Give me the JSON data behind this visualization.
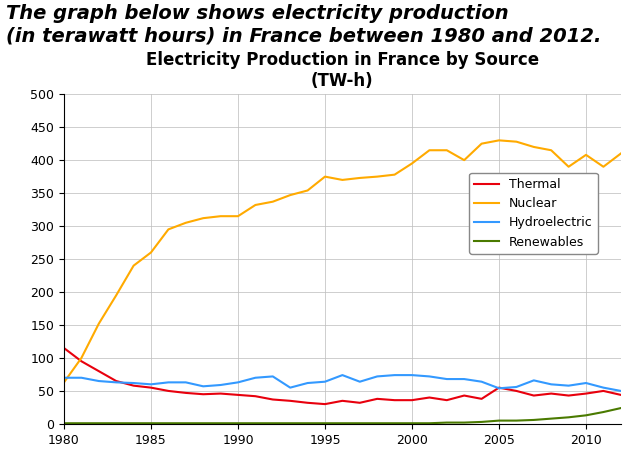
{
  "title_line1": "Electricity Production in France by Source",
  "title_line2": "(TW-h)",
  "header_text": "The graph below shows electricity production\n(in terawatt hours) in France between 1980 and 2012.",
  "years": [
    1980,
    1981,
    1982,
    1983,
    1984,
    1985,
    1986,
    1987,
    1988,
    1989,
    1990,
    1991,
    1992,
    1993,
    1994,
    1995,
    1996,
    1997,
    1998,
    1999,
    2000,
    2001,
    2002,
    2003,
    2004,
    2005,
    2006,
    2007,
    2008,
    2009,
    2010,
    2011,
    2012
  ],
  "thermal": [
    115,
    95,
    80,
    65,
    58,
    55,
    50,
    47,
    45,
    46,
    44,
    42,
    37,
    35,
    32,
    30,
    35,
    32,
    38,
    36,
    36,
    40,
    36,
    43,
    38,
    55,
    50,
    43,
    46,
    43,
    46,
    50,
    44
  ],
  "nuclear": [
    63,
    100,
    152,
    195,
    240,
    260,
    295,
    305,
    312,
    315,
    315,
    332,
    337,
    347,
    354,
    375,
    370,
    373,
    375,
    378,
    395,
    415,
    415,
    400,
    425,
    430,
    428,
    420,
    415,
    390,
    408,
    390,
    410
  ],
  "hydro": [
    70,
    70,
    65,
    63,
    62,
    60,
    63,
    63,
    57,
    59,
    63,
    70,
    72,
    55,
    62,
    64,
    74,
    64,
    72,
    74,
    74,
    72,
    68,
    68,
    64,
    54,
    56,
    66,
    60,
    58,
    62,
    55,
    50
  ],
  "renewables": [
    1,
    1,
    1,
    1,
    1,
    1,
    1,
    1,
    1,
    1,
    1,
    1,
    1,
    1,
    1,
    1,
    1,
    1,
    1,
    1,
    1,
    1,
    2,
    2,
    3,
    5,
    5,
    6,
    8,
    10,
    13,
    18,
    24
  ],
  "thermal_color": "#e8000d",
  "nuclear_color": "#ffaa00",
  "hydro_color": "#3399ff",
  "renewables_color": "#4a7a00",
  "bg_color": "#ffffff",
  "plot_bg_color": "#ffffff",
  "grid_color": "#c0c0c0",
  "ylim": [
    0,
    500
  ],
  "yticks": [
    0,
    50,
    100,
    150,
    200,
    250,
    300,
    350,
    400,
    450,
    500
  ],
  "xlim": [
    1980,
    2012
  ],
  "xticks": [
    1980,
    1985,
    1990,
    1995,
    2000,
    2005,
    2010
  ],
  "header_fontsize": 14,
  "title_fontsize": 12,
  "tick_fontsize": 9,
  "legend_fontsize": 9
}
